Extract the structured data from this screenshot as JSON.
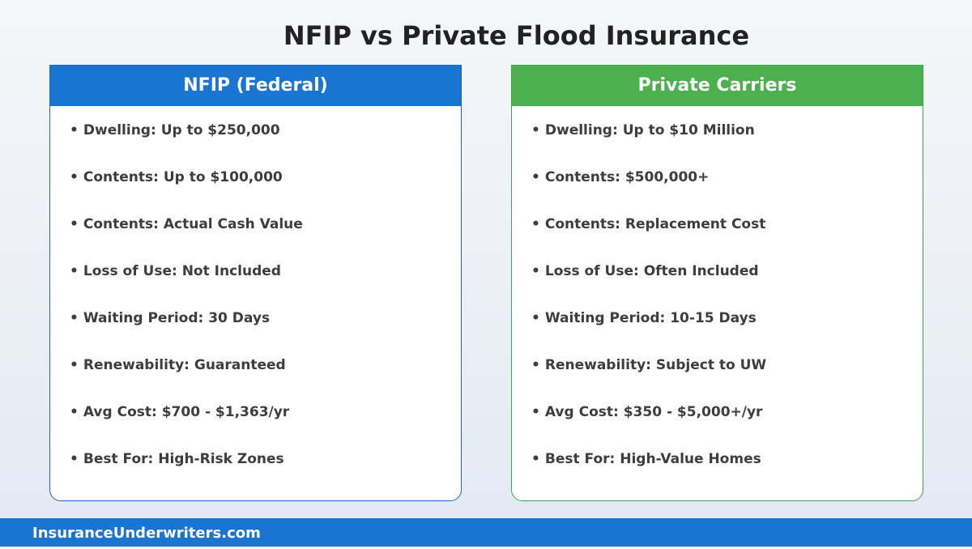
{
  "title": "NFIP vs Private Flood Insurance",
  "nfip": {
    "header": "NFIP (Federal)",
    "items": [
      "Dwelling: Up to $250,000",
      "Contents: Up to $100,000",
      "Contents: Actual Cash Value",
      "Loss of Use: Not Included",
      "Waiting Period: 30 Days",
      "Renewability: Guaranteed",
      "Avg Cost: $700 - $1,363/yr",
      "Best For: High-Risk Zones"
    ]
  },
  "private": {
    "header": "Private Carriers",
    "items": [
      "Dwelling: Up to $10 Million",
      "Contents: $500,000+",
      "Contents: Replacement Cost",
      "Loss of Use: Often Included",
      "Waiting Period: 10-15 Days",
      "Renewability: Subject to UW",
      "Avg Cost: $350 - $5,000+/yr",
      "Best For: High-Value Homes"
    ]
  },
  "footer": {
    "site": "InsuranceUnderwriters.com"
  },
  "colors": {
    "nfip_accent": "#1a75d2",
    "private_accent": "#4cb04f",
    "footer_bg": "#1a75d2",
    "text": "#3d3d3d"
  },
  "bullet_glyph": "•"
}
